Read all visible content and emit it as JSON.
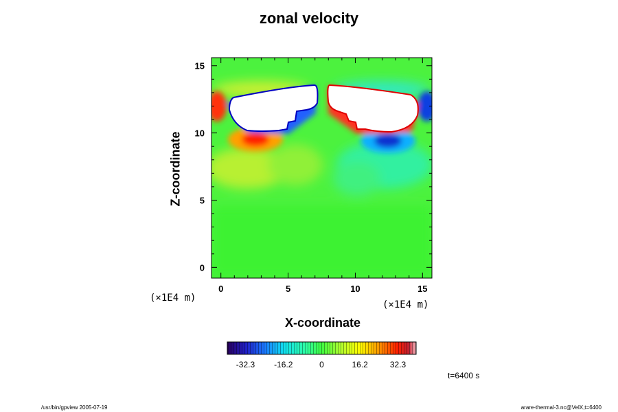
{
  "chart_data": {
    "type": "heatmap",
    "title": "zonal velocity",
    "xlabel": "X-coordinate",
    "ylabel": "Z-coordinate",
    "x_unit": "(×1E4 m)",
    "x_unit_right": "(×1E4 m)",
    "xlim": [
      -0.7,
      15.7
    ],
    "ylim": [
      -0.8,
      15.6
    ],
    "xticks": [
      "0",
      "5",
      "10",
      "15"
    ],
    "yticks": [
      "0",
      "5",
      "10",
      "15"
    ],
    "xtick_values": [
      0,
      5,
      10,
      15
    ],
    "ytick_values": [
      0,
      5,
      10,
      15
    ],
    "colorbar": {
      "range": [
        -40,
        40
      ],
      "tick_labels": [
        "-32.3",
        "-16.2",
        "0",
        "16.2",
        "32.3"
      ],
      "tick_values": [
        -32.3,
        -16.2,
        0,
        16.2,
        32.3
      ]
    },
    "features": [
      {
        "kind": "missing",
        "x": 2.5,
        "z": 12.0,
        "note": "white masked region left of center"
      },
      {
        "kind": "missing",
        "x": 12.5,
        "z": 12.0,
        "note": "white masked region right of center"
      },
      {
        "kind": "max",
        "x": 2.7,
        "z": 9.5,
        "value": 35
      },
      {
        "kind": "min",
        "x": 12.7,
        "z": 9.5,
        "value": -35
      }
    ]
  },
  "annotations": {
    "time": "t=6400 s",
    "footer_left": "/usr/bin/gpview 2005-07-19",
    "footer_right": "arare-thermal-3.nc@VelX,t=6400"
  }
}
